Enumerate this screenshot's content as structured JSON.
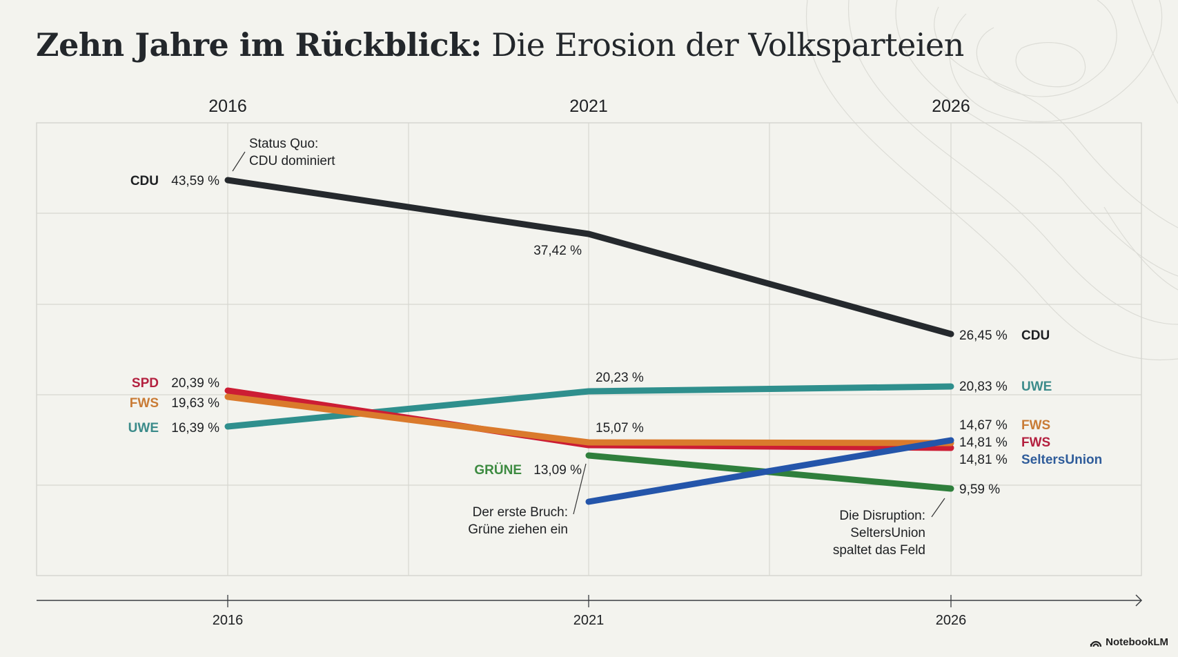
{
  "title": {
    "bold": "Zehn Jahre im Rückblick:",
    "light": "Die Erosion der Volksparteien"
  },
  "watermark": {
    "label": "NotebookLM",
    "icon": "notebooklm-logo-icon"
  },
  "chart_data": {
    "type": "line",
    "title": "Zehn Jahre im Rückblick: Die Erosion der Volksparteien",
    "xlabel": "",
    "ylabel": "",
    "x": [
      "2016",
      "2021",
      "2026"
    ],
    "top_axis_labels": [
      "2016",
      "2021",
      "2026"
    ],
    "bottom_axis_labels": [
      "2016",
      "2021",
      "2026"
    ],
    "ylim": [
      5,
      48
    ],
    "grid": true,
    "legend": "none (direct labels)",
    "series": [
      {
        "name": "CDU",
        "color": "#25292d",
        "label_color": "#1d1f22",
        "values": [
          43.59,
          37.42,
          26.45
        ],
        "labels": [
          "43,59 %",
          "37,42 %",
          "26,45 %"
        ]
      },
      {
        "name": "SPD",
        "color": "#cc1d34",
        "label_color": "#b3203f",
        "values": [
          20.39,
          14.81,
          14.81
        ],
        "labels": [
          "20,39 %",
          "",
          "14,81 %"
        ],
        "end_label": "FWS"
      },
      {
        "name": "FWS",
        "color": "#da7a2c",
        "label_color": "#c97b35",
        "values": [
          19.63,
          15.07,
          14.67
        ],
        "labels": [
          "19,63 %",
          "15,07 %",
          "14,67 %"
        ]
      },
      {
        "name": "UWE",
        "color": "#2f8f8d",
        "label_color": "#3b8b8a",
        "values": [
          16.39,
          20.23,
          20.83
        ],
        "labels": [
          "16,39 %",
          "20,23 %",
          "20,83 %"
        ]
      },
      {
        "name": "GRÜNE",
        "color": "#2f7f3c",
        "label_color": "#3c8a40",
        "values": [
          null,
          13.09,
          9.59
        ],
        "labels": [
          "",
          "13,09 %",
          "9,59 %"
        ]
      },
      {
        "name": "SeltersUnion",
        "color": "#2455aa",
        "label_color": "#2f5c9a",
        "values": [
          null,
          8.0,
          14.81
        ],
        "labels": [
          "",
          "",
          "14,81 %"
        ]
      }
    ],
    "annotations": [
      {
        "text": [
          "Status Quo:",
          "CDU dominiert"
        ],
        "year": "2016",
        "series": "CDU"
      },
      {
        "text": [
          "Der erste Bruch:",
          "Grüne ziehen ein"
        ],
        "year": "2021",
        "series": "GRÜNE"
      },
      {
        "text": [
          "Die Disruption:",
          "SeltersUnion",
          "spaltet das Feld"
        ],
        "year": "2026",
        "series": "SeltersUnion"
      }
    ]
  }
}
